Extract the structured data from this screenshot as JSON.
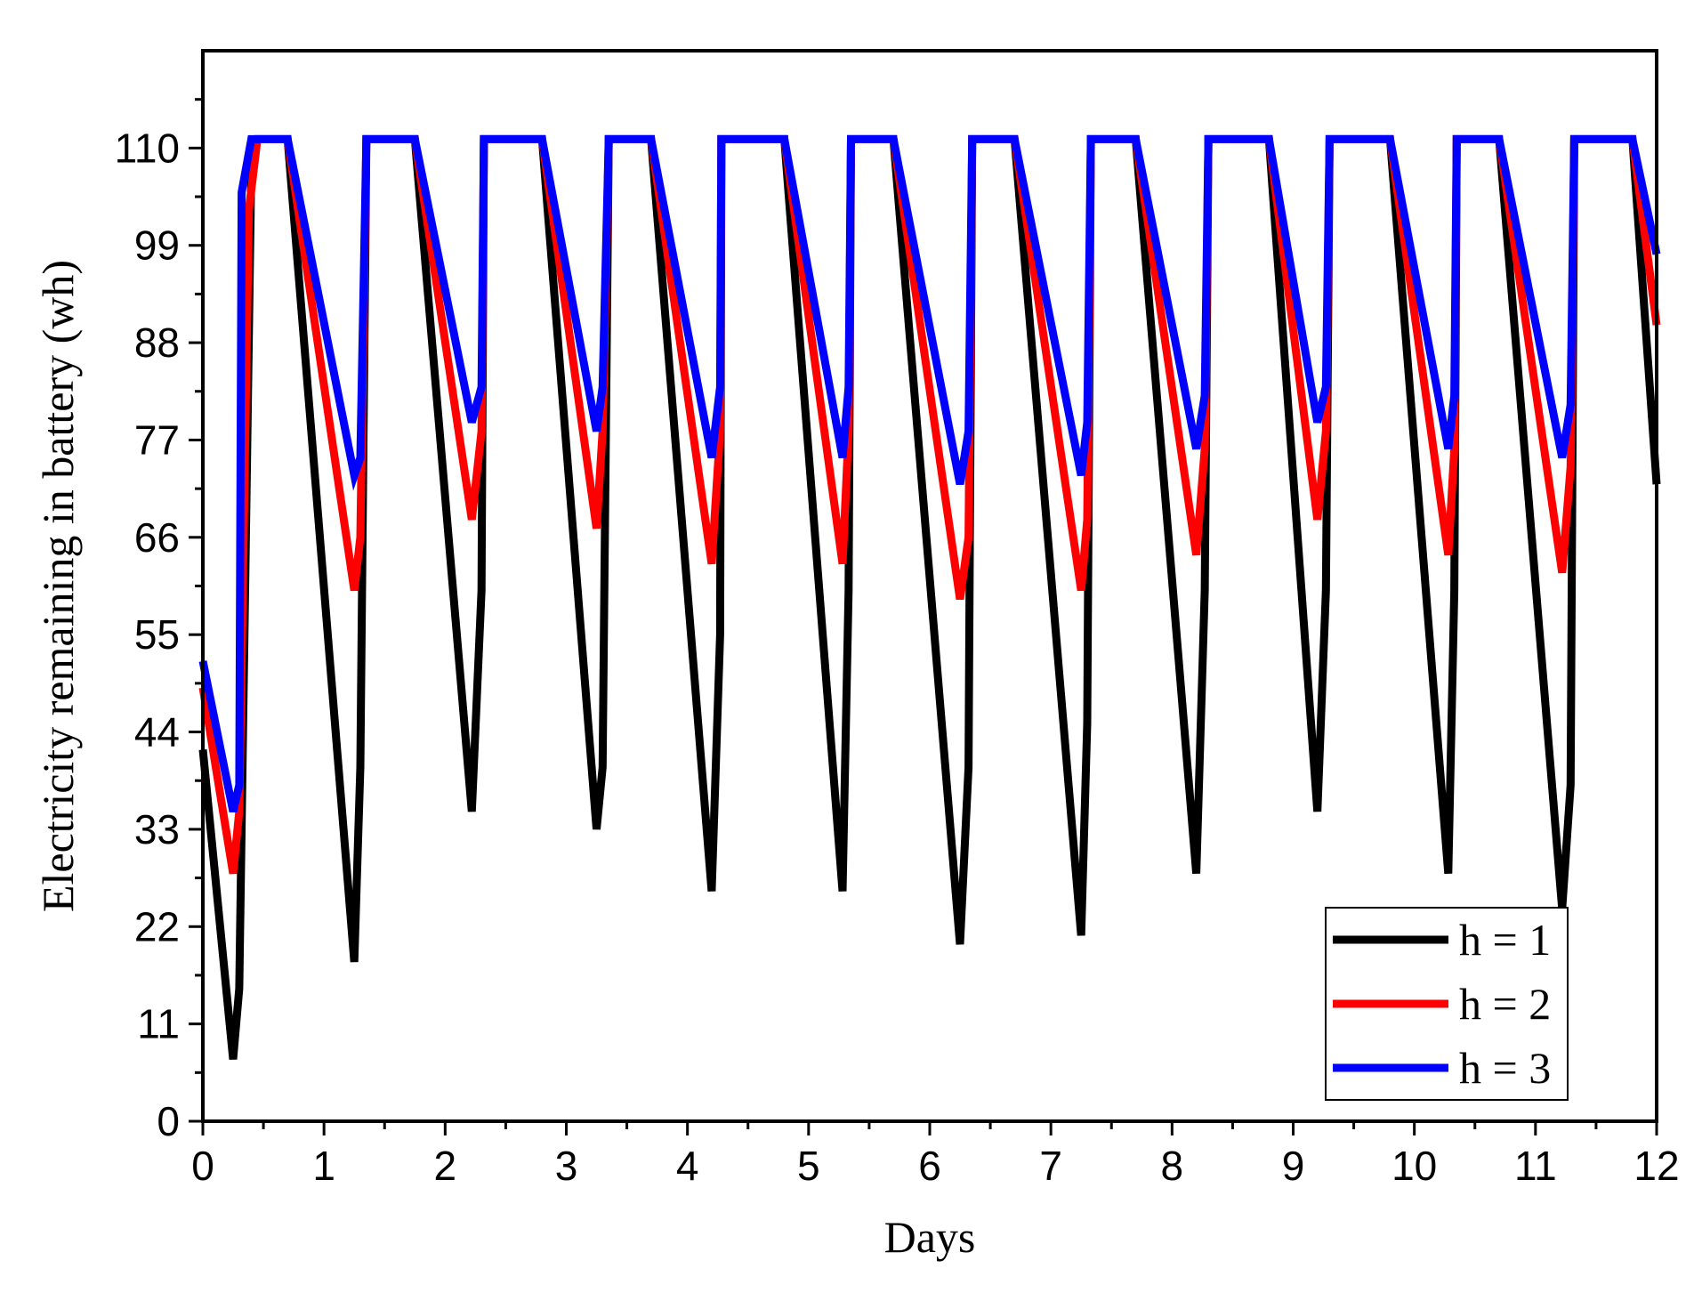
{
  "chart_data": {
    "type": "line",
    "title": "",
    "xlabel": "Days",
    "ylabel": "Electricity remaining in battery (wh)",
    "xlim": [
      0,
      12
    ],
    "ylim": [
      0,
      121
    ],
    "x_ticks": [
      "0",
      "1",
      "2",
      "3",
      "4",
      "5",
      "6",
      "7",
      "8",
      "9",
      "10",
      "11",
      "12"
    ],
    "y_ticks": [
      "0",
      "11",
      "22",
      "33",
      "44",
      "55",
      "66",
      "77",
      "88",
      "99",
      "110"
    ],
    "grid": false,
    "legend_position": "bottom-right",
    "series": [
      {
        "name": "h = 1",
        "color": "#000000",
        "points": [
          [
            0,
            42
          ],
          [
            0.25,
            7
          ],
          [
            0.3,
            15
          ],
          [
            0.4,
            108
          ],
          [
            0.45,
            111
          ],
          [
            0.7,
            111
          ],
          [
            1.25,
            18
          ],
          [
            1.3,
            40
          ],
          [
            1.35,
            111
          ],
          [
            1.75,
            111
          ],
          [
            2.22,
            35
          ],
          [
            2.3,
            60
          ],
          [
            2.32,
            111
          ],
          [
            2.8,
            111
          ],
          [
            3.25,
            33
          ],
          [
            3.3,
            40
          ],
          [
            3.35,
            111
          ],
          [
            3.7,
            111
          ],
          [
            4.2,
            26
          ],
          [
            4.27,
            55
          ],
          [
            4.28,
            111
          ],
          [
            4.8,
            111
          ],
          [
            5.28,
            26
          ],
          [
            5.33,
            60
          ],
          [
            5.35,
            111
          ],
          [
            5.7,
            111
          ],
          [
            6.25,
            20
          ],
          [
            6.32,
            40
          ],
          [
            6.35,
            111
          ],
          [
            6.7,
            111
          ],
          [
            7.25,
            21
          ],
          [
            7.3,
            45
          ],
          [
            7.33,
            111
          ],
          [
            7.7,
            111
          ],
          [
            8.2,
            28
          ],
          [
            8.27,
            60
          ],
          [
            8.3,
            111
          ],
          [
            8.8,
            111
          ],
          [
            9.2,
            35
          ],
          [
            9.27,
            60
          ],
          [
            9.3,
            111
          ],
          [
            9.8,
            111
          ],
          [
            10.28,
            28
          ],
          [
            10.33,
            60
          ],
          [
            10.35,
            111
          ],
          [
            10.7,
            111
          ],
          [
            11.22,
            24
          ],
          [
            11.29,
            38
          ],
          [
            11.32,
            111
          ],
          [
            11.8,
            111
          ],
          [
            12,
            72
          ]
        ]
      },
      {
        "name": "h = 2",
        "color": "#ff0000",
        "points": [
          [
            0,
            49
          ],
          [
            0.25,
            28
          ],
          [
            0.3,
            35
          ],
          [
            0.38,
            103
          ],
          [
            0.45,
            111
          ],
          [
            0.7,
            111
          ],
          [
            1.25,
            60
          ],
          [
            1.3,
            66
          ],
          [
            1.35,
            111
          ],
          [
            1.75,
            111
          ],
          [
            2.22,
            68
          ],
          [
            2.3,
            78
          ],
          [
            2.32,
            111
          ],
          [
            2.8,
            111
          ],
          [
            3.25,
            67
          ],
          [
            3.3,
            78
          ],
          [
            3.35,
            111
          ],
          [
            3.7,
            111
          ],
          [
            4.2,
            63
          ],
          [
            4.27,
            78
          ],
          [
            4.28,
            111
          ],
          [
            4.8,
            111
          ],
          [
            5.28,
            63
          ],
          [
            5.33,
            78
          ],
          [
            5.35,
            111
          ],
          [
            5.7,
            111
          ],
          [
            6.25,
            59
          ],
          [
            6.32,
            66
          ],
          [
            6.35,
            111
          ],
          [
            6.7,
            111
          ],
          [
            7.25,
            60
          ],
          [
            7.3,
            68
          ],
          [
            7.33,
            111
          ],
          [
            7.7,
            111
          ],
          [
            8.2,
            64
          ],
          [
            8.27,
            76
          ],
          [
            8.3,
            111
          ],
          [
            8.8,
            111
          ],
          [
            9.2,
            68
          ],
          [
            9.27,
            78
          ],
          [
            9.3,
            111
          ],
          [
            9.8,
            111
          ],
          [
            10.28,
            64
          ],
          [
            10.33,
            76
          ],
          [
            10.35,
            111
          ],
          [
            10.7,
            111
          ],
          [
            11.22,
            62
          ],
          [
            11.29,
            74
          ],
          [
            11.32,
            111
          ],
          [
            11.8,
            111
          ],
          [
            12,
            90
          ]
        ]
      },
      {
        "name": "h = 3",
        "color": "#0000ff",
        "points": [
          [
            0,
            52
          ],
          [
            0.25,
            35
          ],
          [
            0.3,
            38
          ],
          [
            0.32,
            105
          ],
          [
            0.4,
            111
          ],
          [
            0.7,
            111
          ],
          [
            1.25,
            73
          ],
          [
            1.3,
            75
          ],
          [
            1.35,
            111
          ],
          [
            1.75,
            111
          ],
          [
            2.22,
            79
          ],
          [
            2.3,
            83
          ],
          [
            2.32,
            111
          ],
          [
            2.8,
            111
          ],
          [
            3.25,
            78
          ],
          [
            3.3,
            83
          ],
          [
            3.35,
            111
          ],
          [
            3.7,
            111
          ],
          [
            4.2,
            75
          ],
          [
            4.27,
            83
          ],
          [
            4.28,
            111
          ],
          [
            4.8,
            111
          ],
          [
            5.28,
            75
          ],
          [
            5.33,
            83
          ],
          [
            5.35,
            111
          ],
          [
            5.7,
            111
          ],
          [
            6.25,
            72
          ],
          [
            6.32,
            78
          ],
          [
            6.35,
            111
          ],
          [
            6.7,
            111
          ],
          [
            7.25,
            73
          ],
          [
            7.3,
            79
          ],
          [
            7.33,
            111
          ],
          [
            7.7,
            111
          ],
          [
            8.2,
            76
          ],
          [
            8.27,
            82
          ],
          [
            8.3,
            111
          ],
          [
            8.8,
            111
          ],
          [
            9.2,
            79
          ],
          [
            9.27,
            83
          ],
          [
            9.3,
            111
          ],
          [
            9.8,
            111
          ],
          [
            10.28,
            76
          ],
          [
            10.33,
            82
          ],
          [
            10.35,
            111
          ],
          [
            10.7,
            111
          ],
          [
            11.22,
            75
          ],
          [
            11.29,
            81
          ],
          [
            11.32,
            111
          ],
          [
            11.8,
            111
          ],
          [
            12,
            98
          ]
        ]
      }
    ]
  }
}
